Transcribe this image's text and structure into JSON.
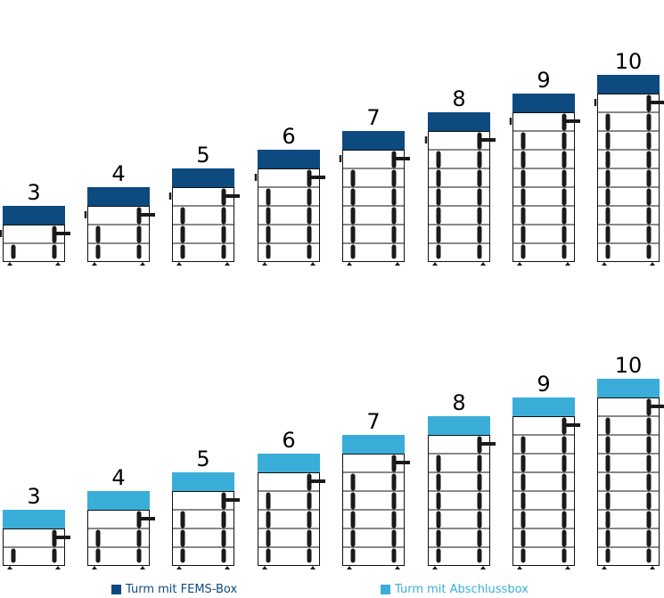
{
  "colors": {
    "fems": "#0D4A7F",
    "abschluss": "#3AAED8",
    "outline": "#111111",
    "rail": "#1A1A1A",
    "legend_fems_text": "#0D4A7F",
    "legend_abschluss_text": "#3AAED8"
  },
  "rows": [
    {
      "variant": "fems",
      "towers": [
        {
          "count": 3,
          "label": "3"
        },
        {
          "count": 4,
          "label": "4"
        },
        {
          "count": 5,
          "label": "5"
        },
        {
          "count": 6,
          "label": "6"
        },
        {
          "count": 7,
          "label": "7"
        },
        {
          "count": 8,
          "label": "8"
        },
        {
          "count": 9,
          "label": "9"
        },
        {
          "count": 10,
          "label": "10"
        }
      ]
    },
    {
      "variant": "abschluss",
      "towers": [
        {
          "count": 3,
          "label": "3"
        },
        {
          "count": 4,
          "label": "4"
        },
        {
          "count": 5,
          "label": "5"
        },
        {
          "count": 6,
          "label": "6"
        },
        {
          "count": 7,
          "label": "7"
        },
        {
          "count": 8,
          "label": "8"
        },
        {
          "count": 9,
          "label": "9"
        },
        {
          "count": 10,
          "label": "10"
        }
      ]
    }
  ],
  "legend": [
    {
      "variant": "fems",
      "label": "Turm mit FEMS-Box"
    },
    {
      "variant": "abschluss",
      "label": "Turm mit Abschlussbox"
    }
  ]
}
